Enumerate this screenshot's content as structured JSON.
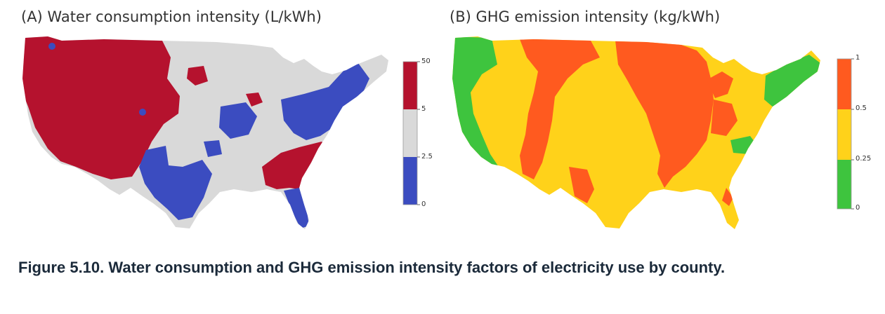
{
  "panels": [
    {
      "id": "A",
      "title": "(A) Water consumption intensity (L/kWh)",
      "legend": {
        "ticks": [
          "50",
          "5",
          "2.5",
          "0"
        ],
        "bins": [
          {
            "from": 5,
            "to": 50,
            "color": "#b5122e"
          },
          {
            "from": 2.5,
            "to": 5,
            "color": "#d9d9d9"
          },
          {
            "from": 0,
            "to": 2.5,
            "color": "#3b4cc0"
          }
        ]
      },
      "colors": {
        "high": "#b5122e",
        "mid": "#d9d9d9",
        "low": "#3b4cc0"
      }
    },
    {
      "id": "B",
      "title": "(B) GHG emission intensity (kg/kWh)",
      "legend": {
        "ticks": [
          "1",
          "0.5",
          "0.25",
          "0"
        ],
        "bins": [
          {
            "from": 0.5,
            "to": 1,
            "color": "#ff5a1f"
          },
          {
            "from": 0.25,
            "to": 0.5,
            "color": "#ffd21a"
          },
          {
            "from": 0,
            "to": 0.25,
            "color": "#3ec43e"
          }
        ]
      },
      "colors": {
        "high": "#ff5a1f",
        "mid": "#ffd21a",
        "low": "#3ec43e"
      }
    }
  ],
  "caption": "Figure 5.10.  Water consumption and GHG emission intensity factors of electricity use by county."
}
